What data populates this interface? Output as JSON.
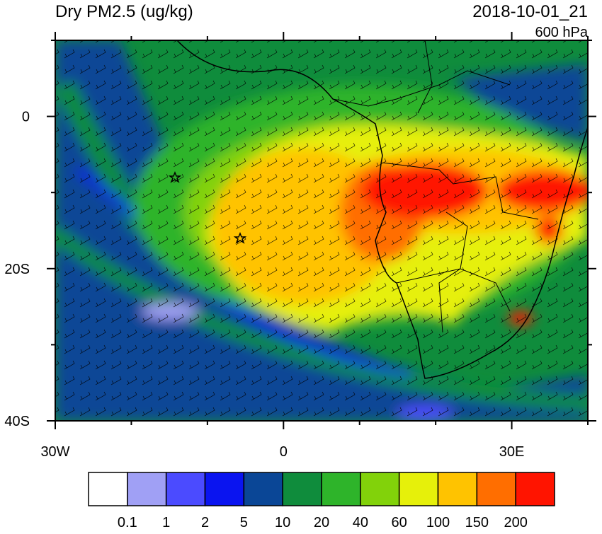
{
  "map": {
    "title": "Dry PM2.5 (ug/kg)",
    "time": "2018-10-01_21",
    "level": "600 hPa",
    "lonlim": [
      -30,
      40
    ],
    "latlim": [
      -40,
      10
    ],
    "lon_ticks": [
      {
        "value": -30,
        "label": "30W"
      },
      0,
      {
        "value": 30,
        "label": "30E"
      }
    ],
    "lon_minor_ticks": [
      -20,
      -10,
      10,
      20,
      40
    ],
    "lat_ticks": [
      0,
      {
        "value": -20,
        "label": "20S"
      },
      {
        "value": -40,
        "label": "40S"
      }
    ],
    "lat_minor_ticks": [
      10,
      -10,
      -30
    ],
    "colorbar": {
      "levels": [
        0.1,
        1,
        2,
        5,
        10,
        20,
        40,
        60,
        100,
        150,
        200
      ],
      "colors": [
        "#ffffff",
        "#a0a0f5",
        "#4b4bff",
        "#0a14f0",
        "#0a4696",
        "#0f8c3c",
        "#2eb42a",
        "#82d20a",
        "#e6f00a",
        "#ffc300",
        "#ff6e00",
        "#ff1400"
      ]
    }
  }
}
